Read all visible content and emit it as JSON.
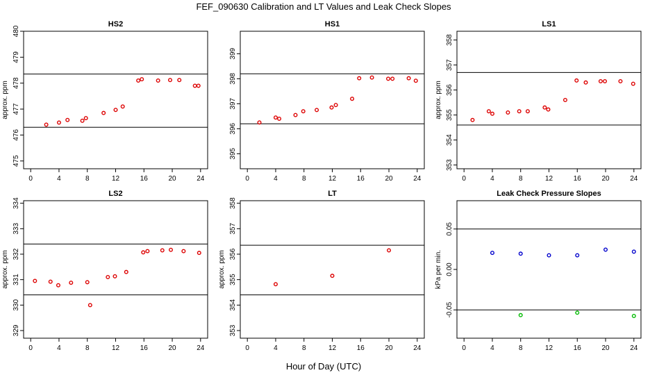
{
  "suptitle": "FEF_090630  Calibration and LT Values and Leak Check Slopes",
  "xlabel": "Hour of Day (UTC)",
  "colors": {
    "red": "#dd0000",
    "blue": "#0000cc",
    "green": "#00bb00",
    "axis": "#000000"
  },
  "chart_data": [
    {
      "type": "scatter",
      "title": "HS2",
      "ylabel": "approx. ppm",
      "xlim": [
        -1,
        25
      ],
      "ylim": [
        474.7,
        480.0
      ],
      "xticks": [
        0,
        4,
        8,
        12,
        16,
        20,
        24
      ],
      "yticks": [
        475,
        476,
        477,
        478,
        479,
        480
      ],
      "hlines": [
        476.3,
        478.35
      ],
      "series": [
        {
          "name": "values",
          "color": "red",
          "x": [
            2.2,
            4.0,
            5.2,
            7.3,
            7.8,
            10.3,
            12.0,
            13.0,
            15.2,
            15.7,
            18.0,
            19.7,
            21.0,
            23.2,
            23.7
          ],
          "y": [
            476.4,
            476.48,
            476.58,
            476.55,
            476.65,
            476.85,
            476.97,
            477.1,
            478.1,
            478.15,
            478.1,
            478.12,
            478.12,
            477.9,
            477.9
          ]
        }
      ]
    },
    {
      "type": "scatter",
      "title": "HS1",
      "ylabel": "",
      "xlim": [
        -1,
        25
      ],
      "ylim": [
        394.4,
        399.9
      ],
      "xticks": [
        0,
        4,
        8,
        12,
        16,
        20,
        24
      ],
      "yticks": [
        395,
        396,
        397,
        398,
        399
      ],
      "hlines": [
        396.2,
        398.2
      ],
      "series": [
        {
          "name": "values",
          "color": "red",
          "x": [
            1.7,
            4.0,
            4.5,
            6.8,
            7.9,
            9.8,
            11.9,
            12.5,
            14.8,
            15.8,
            17.6,
            19.9,
            20.5,
            22.8,
            23.8
          ],
          "y": [
            396.25,
            396.45,
            396.4,
            396.55,
            396.7,
            396.75,
            396.85,
            396.95,
            397.2,
            398.02,
            398.05,
            398.0,
            398.0,
            398.02,
            397.92
          ]
        }
      ]
    },
    {
      "type": "scatter",
      "title": "LS1",
      "ylabel": "approx. ppm",
      "xlim": [
        -1,
        25
      ],
      "ylim": [
        352.85,
        358.35
      ],
      "xticks": [
        0,
        4,
        8,
        12,
        16,
        20,
        24
      ],
      "yticks": [
        353,
        354,
        355,
        356,
        357,
        358
      ],
      "hlines": [
        354.6,
        356.7
      ],
      "series": [
        {
          "name": "values",
          "color": "red",
          "x": [
            1.2,
            3.5,
            4.0,
            6.2,
            7.8,
            9.0,
            11.4,
            11.9,
            14.3,
            15.9,
            17.2,
            19.3,
            19.9,
            22.1,
            23.9
          ],
          "y": [
            354.8,
            355.15,
            355.05,
            355.1,
            355.15,
            355.15,
            355.3,
            355.22,
            355.6,
            356.38,
            356.3,
            356.35,
            356.35,
            356.35,
            356.25
          ]
        }
      ]
    },
    {
      "type": "scatter",
      "title": "LS2",
      "ylabel": "approx. ppm",
      "xlim": [
        -1,
        25
      ],
      "ylim": [
        328.7,
        334.1
      ],
      "xticks": [
        0,
        4,
        8,
        12,
        16,
        20,
        24
      ],
      "yticks": [
        329,
        330,
        331,
        332,
        333,
        334
      ],
      "hlines": [
        330.4,
        332.4
      ],
      "series": [
        {
          "name": "values",
          "color": "red",
          "x": [
            0.6,
            2.8,
            3.9,
            5.7,
            8.0,
            8.4,
            10.9,
            11.9,
            13.5,
            15.9,
            16.5,
            18.6,
            19.8,
            21.6,
            23.8
          ],
          "y": [
            330.95,
            330.92,
            330.78,
            330.88,
            330.9,
            330.0,
            331.1,
            331.13,
            331.3,
            332.07,
            332.12,
            332.15,
            332.17,
            332.12,
            332.05
          ]
        }
      ]
    },
    {
      "type": "scatter",
      "title": "LT",
      "ylabel": "approx. ppm",
      "xlim": [
        -1,
        25
      ],
      "ylim": [
        352.7,
        358.1
      ],
      "xticks": [
        0,
        4,
        8,
        12,
        16,
        20,
        24
      ],
      "yticks": [
        353,
        354,
        355,
        356,
        357,
        358
      ],
      "hlines": [
        354.4,
        356.35
      ],
      "series": [
        {
          "name": "values",
          "color": "red",
          "x": [
            4.0,
            12.0,
            20.0
          ],
          "y": [
            354.82,
            355.15,
            356.15
          ]
        }
      ]
    },
    {
      "type": "scatter",
      "title": "Leak Check Pressure Slopes",
      "ylabel": "kPa per min.",
      "xlim": [
        -1,
        25
      ],
      "ylim": [
        -0.085,
        0.085
      ],
      "xticks": [
        0,
        4,
        8,
        12,
        16,
        20,
        24
      ],
      "yticks": [
        -0.05,
        0.0,
        0.05
      ],
      "ytick_labels": [
        "-0.05",
        "0.00",
        "0.05"
      ],
      "hlines": [
        -0.05,
        0.05
      ],
      "series": [
        {
          "name": "blue",
          "color": "blue",
          "x": [
            4.0,
            8.0,
            12.0,
            16.0,
            20.0,
            24.0
          ],
          "y": [
            0.0205,
            0.0195,
            0.0175,
            0.0175,
            0.0245,
            0.022
          ]
        },
        {
          "name": "green",
          "color": "green",
          "x": [
            8.0,
            16.0,
            24.0
          ],
          "y": [
            -0.0565,
            -0.0535,
            -0.0575
          ]
        }
      ]
    }
  ]
}
